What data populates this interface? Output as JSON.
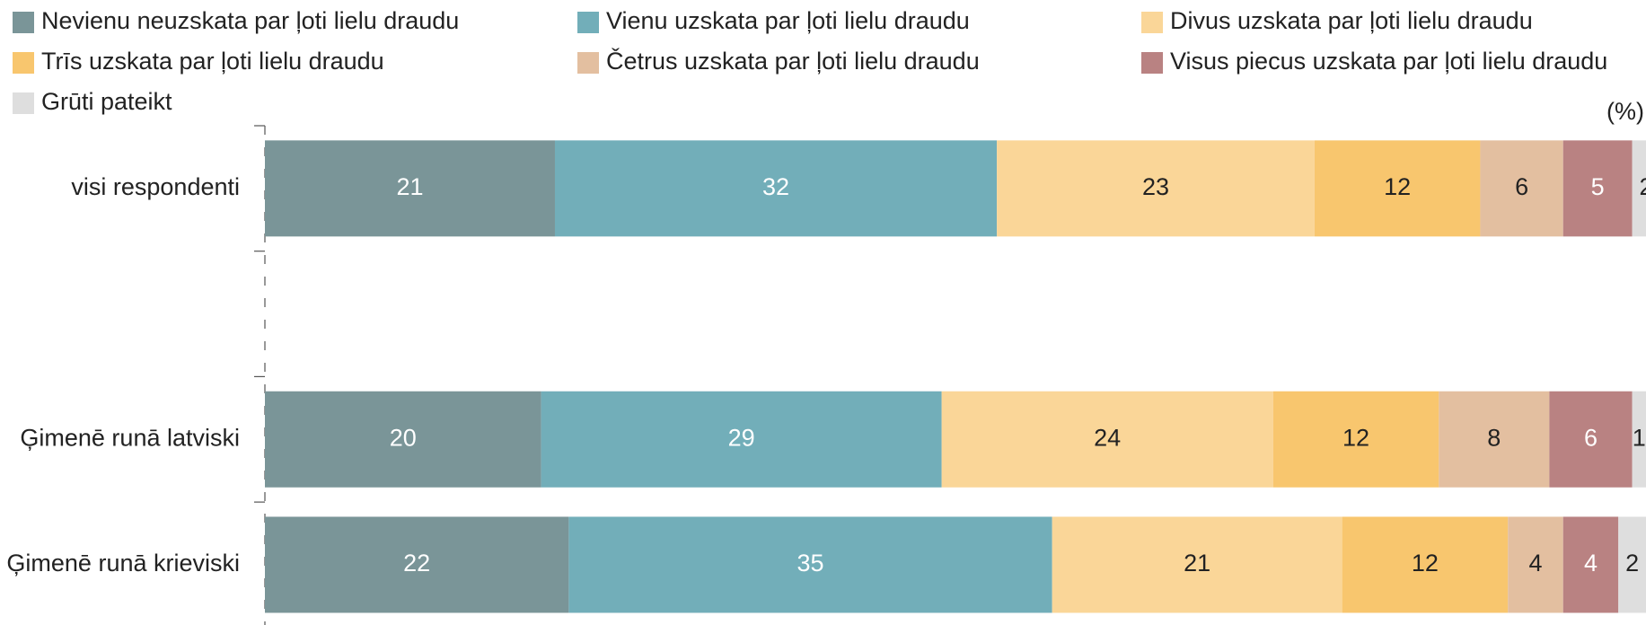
{
  "chart_data": {
    "type": "stacked-barh",
    "unit_label": "(%)",
    "categories": [
      "visi respondenti",
      null,
      "Ģimenē runā latviski",
      "Ģimenē runā krieviski"
    ],
    "xlim": [
      0,
      100
    ],
    "series": [
      {
        "name": "Nevienu neuzskata par ļoti lielu draudu",
        "color": "#7a9598",
        "label_color": "#ffffff",
        "values": [
          21,
          null,
          20,
          22
        ]
      },
      {
        "name": "Vienu uzskata par ļoti lielu draudu",
        "color": "#72aeb9",
        "label_color": "#ffffff",
        "values": [
          32,
          null,
          29,
          35
        ]
      },
      {
        "name": "Divus uzskata par ļoti lielu draudu",
        "color": "#fad698",
        "label_color": "#222222",
        "values": [
          23,
          null,
          24,
          21
        ]
      },
      {
        "name": "Trīs uzskata par ļoti lielu draudu",
        "color": "#f8c66e",
        "label_color": "#222222",
        "values": [
          12,
          null,
          12,
          12
        ]
      },
      {
        "name": "Četrus uzskata par ļoti lielu draudu",
        "color": "#e3bfa0",
        "label_color": "#222222",
        "values": [
          6,
          null,
          8,
          4
        ]
      },
      {
        "name": "Visus piecus uzskata par ļoti lielu draudu",
        "color": "#b98282",
        "label_color": "#ffffff",
        "values": [
          5,
          null,
          6,
          4
        ]
      },
      {
        "name": "Grūti pateikt",
        "color": "#dedede",
        "label_color": "#222222",
        "values": [
          2,
          null,
          1,
          2
        ]
      }
    ]
  }
}
